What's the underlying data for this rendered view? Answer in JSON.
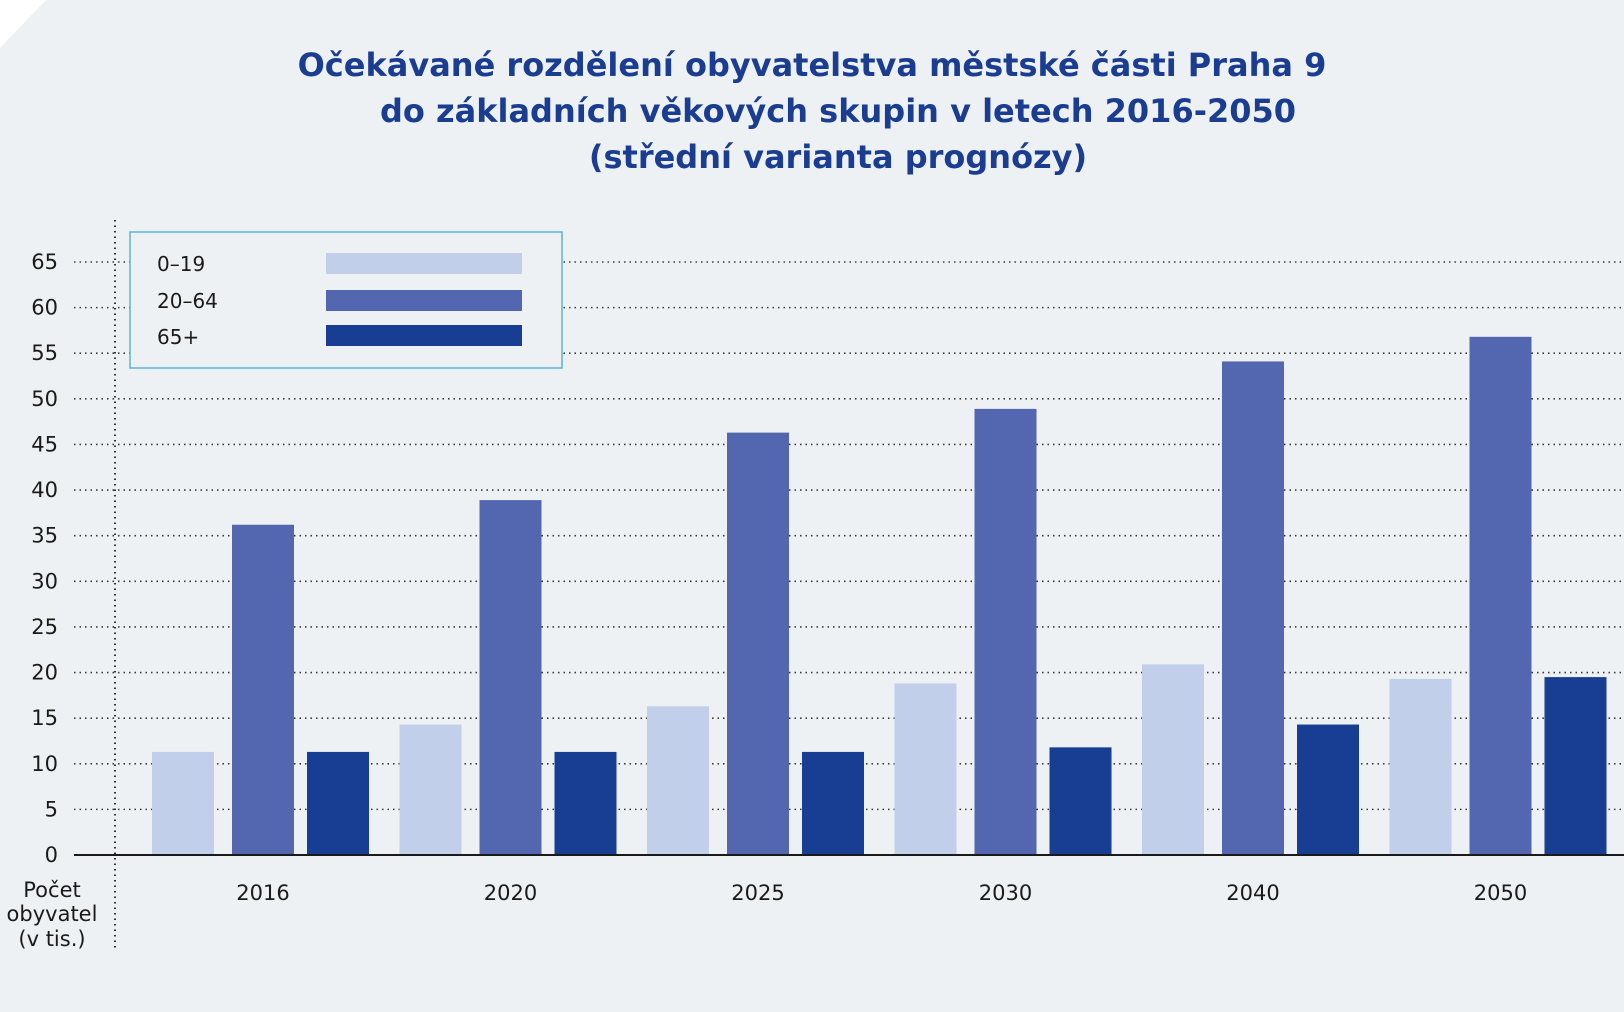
{
  "colors": {
    "background": "#eef1f3",
    "title": "#1a3d92",
    "grid": "#3a3a3a",
    "axis": "#1a1a1a",
    "legend_border": "#5ab4d6"
  },
  "chart_data": {
    "type": "bar",
    "title_lines": [
      "Očekávané rozdělení obyvatelstva městské části Praha 9",
      "do základních věkových skupin v letech 2016-2050",
      "(střední varianta prognózy)"
    ],
    "unit_label_lines": [
      "Počet",
      "obyvatel",
      "(v tis.)"
    ],
    "categories": [
      "2016",
      "2020",
      "2025",
      "2030",
      "2040",
      "2050"
    ],
    "series": [
      {
        "name": "0–19",
        "color": "#c2cfeb",
        "values": [
          11.3,
          14.3,
          16.3,
          18.8,
          20.9,
          19.3
        ]
      },
      {
        "name": "20–64",
        "color": "#5366b0",
        "values": [
          36.2,
          38.9,
          46.3,
          48.9,
          54.1,
          56.8
        ]
      },
      {
        "name": "65+",
        "color": "#173e92",
        "values": [
          11.3,
          11.3,
          11.3,
          11.8,
          14.3,
          19.5
        ]
      }
    ],
    "ylim": [
      0,
      65
    ],
    "yticks": [
      "0",
      "5",
      "10",
      "15",
      "20",
      "25",
      "30",
      "35",
      "40",
      "45",
      "50",
      "55",
      "60",
      "65"
    ],
    "grid": "horizontal dotted",
    "legend_position": "top-left"
  }
}
